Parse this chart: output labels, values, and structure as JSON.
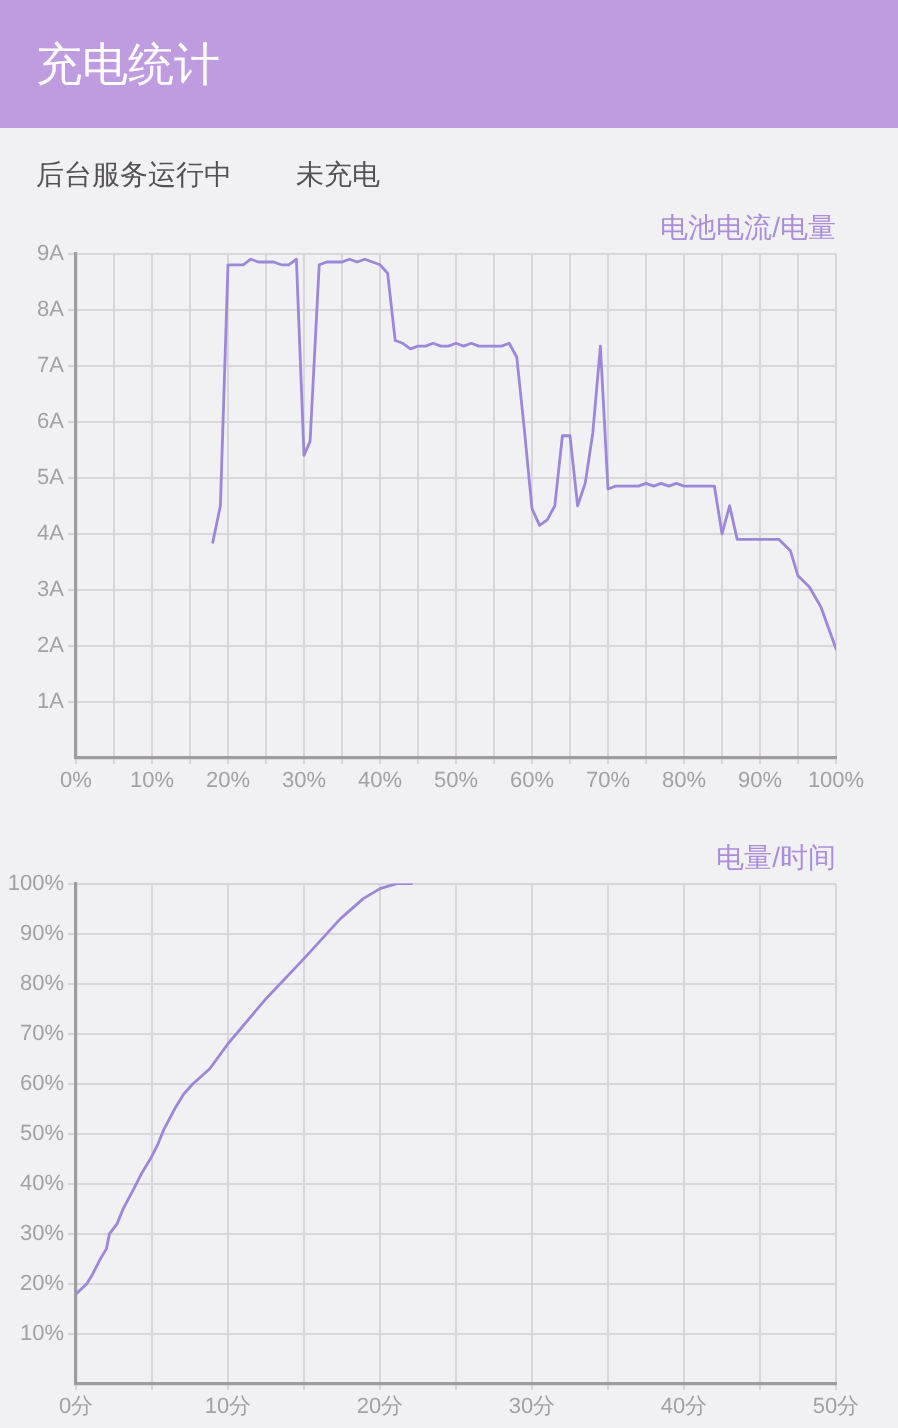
{
  "chart_data": [
    {
      "type": "line",
      "title": "充电统计",
      "subtitle": "电池电流/电量",
      "annotations": [
        "后台服务运行中",
        "未充电"
      ],
      "x": [
        18,
        19,
        20,
        21,
        22,
        23,
        24,
        25,
        26,
        27,
        28,
        29,
        30,
        30.8,
        32,
        33,
        34,
        35,
        36,
        37,
        38,
        39,
        40,
        41,
        42,
        43,
        44,
        45,
        46,
        47,
        48,
        49,
        50,
        51,
        52,
        53,
        54,
        55,
        56,
        57,
        58,
        59,
        60,
        61,
        62,
        63,
        64,
        65,
        66,
        67,
        68,
        69,
        70,
        71,
        72,
        73,
        74,
        75,
        76,
        77,
        78,
        79,
        80,
        81,
        82,
        83,
        84,
        85,
        86,
        87,
        88,
        89,
        90,
        91,
        92.5,
        94,
        95,
        96.5,
        98,
        100
      ],
      "series": [
        {
          "color": "#9d87d8",
          "values": [
            3.85,
            4.5,
            8.8,
            8.8,
            8.8,
            8.9,
            8.85,
            8.85,
            8.85,
            8.8,
            8.8,
            8.9,
            5.4,
            5.65,
            8.8,
            8.85,
            8.85,
            8.85,
            8.9,
            8.85,
            8.9,
            8.85,
            8.8,
            8.65,
            7.45,
            7.4,
            7.3,
            7.35,
            7.35,
            7.4,
            7.35,
            7.35,
            7.4,
            7.35,
            7.4,
            7.35,
            7.35,
            7.35,
            7.35,
            7.4,
            7.15,
            5.85,
            4.45,
            4.15,
            4.25,
            4.5,
            5.75,
            5.75,
            4.5,
            4.9,
            5.8,
            7.35,
            4.8,
            4.85,
            4.85,
            4.85,
            4.85,
            4.9,
            4.85,
            4.9,
            4.85,
            4.9,
            4.85,
            4.85,
            4.85,
            4.85,
            4.85,
            4.0,
            4.5,
            3.9,
            3.9,
            3.9,
            3.9,
            3.9,
            3.9,
            3.7,
            3.25,
            3.05,
            2.7,
            1.95
          ]
        }
      ],
      "xlim": [
        0,
        100
      ],
      "xticks": [
        {
          "value": 0,
          "label": "0%"
        },
        {
          "value": 5,
          "label": null
        },
        {
          "value": 10,
          "label": "10%"
        },
        {
          "value": 15,
          "label": null
        },
        {
          "value": 20,
          "label": "20%"
        },
        {
          "value": 25,
          "label": null
        },
        {
          "value": 30,
          "label": "30%"
        },
        {
          "value": 35,
          "label": null
        },
        {
          "value": 40,
          "label": "40%"
        },
        {
          "value": 45,
          "label": null
        },
        {
          "value": 50,
          "label": "50%"
        },
        {
          "value": 55,
          "label": null
        },
        {
          "value": 60,
          "label": "60%"
        },
        {
          "value": 65,
          "label": null
        },
        {
          "value": 70,
          "label": "70%"
        },
        {
          "value": 75,
          "label": null
        },
        {
          "value": 80,
          "label": "80%"
        },
        {
          "value": 85,
          "label": null
        },
        {
          "value": 90,
          "label": "90%"
        },
        {
          "value": 95,
          "label": null
        },
        {
          "value": 100,
          "label": "100%"
        }
      ],
      "ylim": [
        0,
        9
      ],
      "yticks": [
        {
          "value": 1,
          "label": "1A"
        },
        {
          "value": 2,
          "label": "2A"
        },
        {
          "value": 3,
          "label": "3A"
        },
        {
          "value": 4,
          "label": "4A"
        },
        {
          "value": 5,
          "label": "5A"
        },
        {
          "value": 6,
          "label": "6A"
        },
        {
          "value": 7,
          "label": "7A"
        },
        {
          "value": 8,
          "label": "8A"
        },
        {
          "value": 9,
          "label": "9A"
        }
      ],
      "grid": true,
      "marker": "none"
    },
    {
      "type": "line",
      "title": "电量/时间",
      "x": [
        0,
        0.7,
        1.1,
        1.6,
        2,
        2.2,
        2.7,
        3.1,
        3.8,
        4.3,
        4.9,
        5.4,
        5.8,
        6.5,
        7.1,
        7.7,
        8.8,
        10,
        12.5,
        15,
        17.4,
        18.9,
        20,
        21.1,
        22.1
      ],
      "series": [
        {
          "color": "#9d87d8",
          "values": [
            18,
            20,
            22,
            25,
            27,
            30,
            32,
            35,
            39,
            42,
            45,
            48,
            51,
            55,
            58,
            60,
            63,
            68,
            77,
            85,
            93,
            97,
            99,
            100,
            100
          ]
        }
      ],
      "xlim": [
        0,
        50
      ],
      "xticks": [
        {
          "value": 0,
          "label": "0分"
        },
        {
          "value": 5,
          "label": null
        },
        {
          "value": 10,
          "label": "10分"
        },
        {
          "value": 15,
          "label": null
        },
        {
          "value": 20,
          "label": "20分"
        },
        {
          "value": 25,
          "label": null
        },
        {
          "value": 30,
          "label": "30分"
        },
        {
          "value": 35,
          "label": null
        },
        {
          "value": 40,
          "label": "40分"
        },
        {
          "value": 45,
          "label": null
        },
        {
          "value": 50,
          "label": "50分"
        }
      ],
      "ylim": [
        0,
        100
      ],
      "yticks": [
        {
          "value": 10,
          "label": "10%"
        },
        {
          "value": 20,
          "label": "20%"
        },
        {
          "value": 30,
          "label": "30%"
        },
        {
          "value": 40,
          "label": "40%"
        },
        {
          "value": 50,
          "label": "50%"
        },
        {
          "value": 60,
          "label": "60%"
        },
        {
          "value": 70,
          "label": "70%"
        },
        {
          "value": 80,
          "label": "80%"
        },
        {
          "value": 90,
          "label": "90%"
        },
        {
          "value": 100,
          "label": "100%"
        }
      ],
      "grid": true,
      "marker": "none"
    }
  ]
}
